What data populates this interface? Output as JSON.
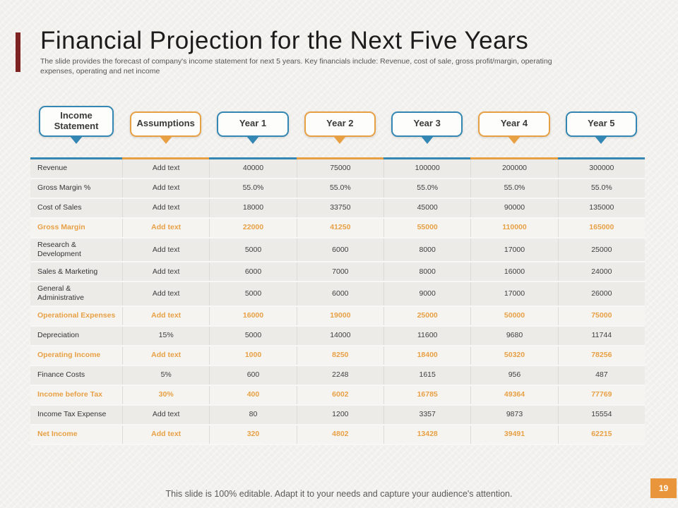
{
  "accent_colors": {
    "blue": "#3487b2",
    "orange": "#e8a045",
    "title_accent_bar": "#7e2321",
    "page_badge": "#e8953c"
  },
  "header": {
    "title": "Financial Projection for the Next Five Years",
    "subtitle": "The slide provides the forecast of company's income statement for next 5 years. Key financials include: Revenue, cost of sale, gross profit/margin, operating expenses, operating and net income"
  },
  "table": {
    "columns": [
      {
        "label": "Income Statement",
        "color": "blue"
      },
      {
        "label": "Assumptions",
        "color": "orange"
      },
      {
        "label": "Year 1",
        "color": "blue"
      },
      {
        "label": "Year 2",
        "color": "orange"
      },
      {
        "label": "Year 3",
        "color": "blue"
      },
      {
        "label": "Year 4",
        "color": "orange"
      },
      {
        "label": "Year 5",
        "color": "blue"
      }
    ],
    "rows": [
      {
        "label": "Revenue",
        "assumption": "Add text",
        "values": [
          "40000",
          "75000",
          "100000",
          "200000",
          "300000"
        ],
        "highlight": false
      },
      {
        "label": "Gross Margin %",
        "assumption": "Add text",
        "values": [
          "55.0%",
          "55.0%",
          "55.0%",
          "55.0%",
          "55.0%"
        ],
        "highlight": false
      },
      {
        "label": "Cost of Sales",
        "assumption": "Add text",
        "values": [
          "18000",
          "33750",
          "45000",
          "90000",
          "135000"
        ],
        "highlight": false
      },
      {
        "label": "Gross Margin",
        "assumption": "Add text",
        "values": [
          "22000",
          "41250",
          "55000",
          "110000",
          "165000"
        ],
        "highlight": true
      },
      {
        "label": "Research & Development",
        "assumption": "Add text",
        "values": [
          "5000",
          "6000",
          "8000",
          "17000",
          "25000"
        ],
        "highlight": false
      },
      {
        "label": "Sales & Marketing",
        "assumption": "Add text",
        "values": [
          "6000",
          "7000",
          "8000",
          "16000",
          "24000"
        ],
        "highlight": false
      },
      {
        "label": "General & Administrative",
        "assumption": "Add text",
        "values": [
          "5000",
          "6000",
          "9000",
          "17000",
          "26000"
        ],
        "highlight": false
      },
      {
        "label": "Operational Expenses",
        "assumption": "Add text",
        "values": [
          "16000",
          "19000",
          "25000",
          "50000",
          "75000"
        ],
        "highlight": true
      },
      {
        "label": "Depreciation",
        "assumption": "15%",
        "values": [
          "5000",
          "14000",
          "11600",
          "9680",
          "11744"
        ],
        "highlight": false
      },
      {
        "label": "Operating Income",
        "assumption": "Add text",
        "values": [
          "1000",
          "8250",
          "18400",
          "50320",
          "78256"
        ],
        "highlight": true
      },
      {
        "label": "Finance Costs",
        "assumption": "5%",
        "values": [
          "600",
          "2248",
          "1615",
          "956",
          "487"
        ],
        "highlight": false
      },
      {
        "label": "Income before Tax",
        "assumption": "30%",
        "values": [
          "400",
          "6002",
          "16785",
          "49364",
          "77769"
        ],
        "highlight": true
      },
      {
        "label": "Income Tax Expense",
        "assumption": "Add text",
        "values": [
          "80",
          "1200",
          "3357",
          "9873",
          "15554"
        ],
        "highlight": false
      },
      {
        "label": "Net Income",
        "assumption": "Add text",
        "values": [
          "320",
          "4802",
          "13428",
          "39491",
          "62215"
        ],
        "highlight": true
      }
    ]
  },
  "footer": {
    "note": "This slide is 100% editable. Adapt it to your needs and capture your audience's attention.",
    "page_number": "19"
  }
}
